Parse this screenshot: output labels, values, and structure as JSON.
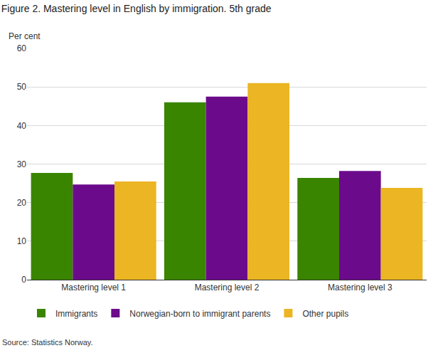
{
  "chart_data": {
    "type": "bar",
    "title": "Figure 2. Mastering level in English by immigration. 5th grade",
    "ylabel": "Per cent",
    "source": "Source: Statistics Norway.",
    "categories": [
      "Mastering level 1",
      "Mastering level 2",
      "Mastering level 3"
    ],
    "series": [
      {
        "name": "Immigrants",
        "color": "#3a8500",
        "values": [
          27.7,
          46.0,
          26.4
        ]
      },
      {
        "name": "Norwegian-born to immigrant parents",
        "color": "#6b0b8c",
        "values": [
          24.7,
          47.5,
          28.2
        ]
      },
      {
        "name": "Other pupils",
        "color": "#ebb523",
        "values": [
          25.5,
          51.0,
          23.8
        ]
      }
    ],
    "ylim": [
      0,
      60
    ],
    "yticks": [
      0,
      10,
      20,
      30,
      40,
      50,
      60
    ],
    "grid": true,
    "legend": "bottom"
  }
}
